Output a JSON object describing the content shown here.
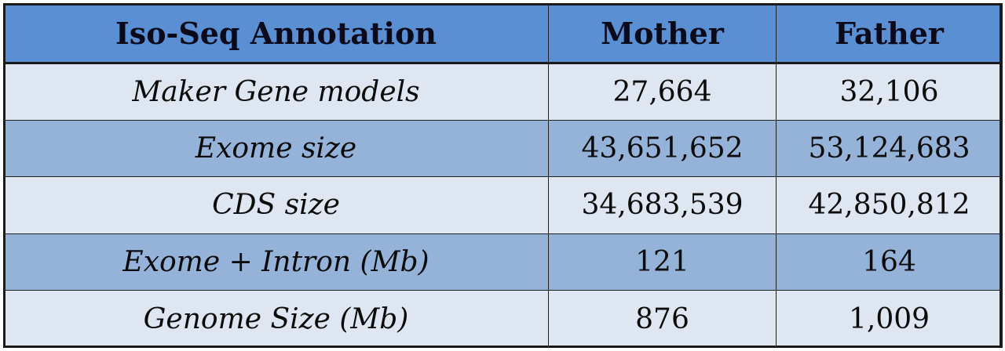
{
  "table": {
    "headers": [
      "Iso-Seq Annotation",
      "Mother",
      "Father"
    ],
    "rows": [
      {
        "label": "Maker Gene models",
        "mother": "27,664",
        "father": "32,106"
      },
      {
        "label": "Exome size",
        "mother": "43,651,652",
        "father": "53,124,683"
      },
      {
        "label": "CDS size",
        "mother": "34,683,539",
        "father": "42,850,812"
      },
      {
        "label": "Exome + Intron (Mb)",
        "mother": "121",
        "father": "164"
      },
      {
        "label": "Genome Size (Mb)",
        "mother": "876",
        "father": "1,009"
      }
    ]
  },
  "colors": {
    "header_bg": "#5b8fd4",
    "row_light": "#dde6f1",
    "row_dark": "#95b3d9"
  }
}
